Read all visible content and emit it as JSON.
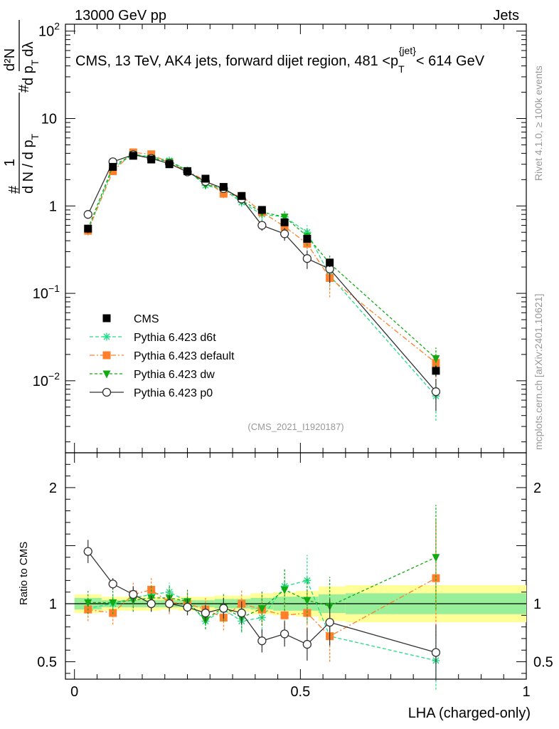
{
  "header": {
    "left": "13000 GeV pp",
    "right": "Jets"
  },
  "title": {
    "prefix": "CMS, 13 TeV, AK4 jets, forward dijet region, 481 <p",
    "sub": "T",
    "sup": "{jet}",
    "suffix": "< 614 GeV"
  },
  "side_labels": {
    "rivet": "Rivet 4.1.0, ≥ 100k events",
    "mcplots": "mcplots.cern.ch [arXiv:2401.10621]"
  },
  "analysis_id": "(CMS_2021_I1920187)",
  "main_ylabel": {
    "hash": "#",
    "one": "1",
    "dn": "d N / d p",
    "dn_sub": "T",
    "num": "d²N",
    "den": "d p",
    "den_sub": "T",
    "den_tail": "dλ"
  },
  "ratio_ylabel": "Ratio to CMS",
  "xlabel": "LHA (charged-only)",
  "legend": [
    {
      "label": "CMS"
    },
    {
      "label": "Pythia 6.423 d6t"
    },
    {
      "label": "Pythia 6.423 default"
    },
    {
      "label": "Pythia 6.423 dw"
    },
    {
      "label": "Pythia 6.423 p0"
    }
  ],
  "chart_data": {
    "type": "scatter",
    "x": [
      0.03,
      0.085,
      0.13,
      0.17,
      0.21,
      0.25,
      0.29,
      0.33,
      0.37,
      0.415,
      0.465,
      0.515,
      0.565,
      0.8
    ],
    "xlim": [
      -0.02,
      1.0
    ],
    "main": {
      "yscale": "log",
      "ylim": [
        0.0015,
        120
      ],
      "ticks": [
        {
          "v": 0.01,
          "base": "10",
          "exp": "−2"
        },
        {
          "v": 0.1,
          "base": "10",
          "exp": "−1"
        },
        {
          "v": 1,
          "base": "1",
          "exp": ""
        },
        {
          "v": 10,
          "base": "10",
          "exp": ""
        },
        {
          "v": 100,
          "base": "10",
          "exp": "2"
        }
      ]
    },
    "ratio": {
      "ylim": [
        0.35,
        2.3
      ],
      "ticks": [
        0.5,
        1,
        2
      ],
      "band_x": [
        0.0,
        0.06,
        0.11,
        0.15,
        0.19,
        0.23,
        0.27,
        0.31,
        0.35,
        0.39,
        0.44,
        0.49,
        0.54,
        0.6,
        1.0
      ],
      "band_inner": [
        0.05,
        0.03,
        0.03,
        0.03,
        0.03,
        0.03,
        0.03,
        0.04,
        0.04,
        0.05,
        0.06,
        0.06,
        0.08,
        0.09
      ],
      "band_outer": [
        0.08,
        0.06,
        0.06,
        0.06,
        0.05,
        0.06,
        0.06,
        0.07,
        0.07,
        0.09,
        0.1,
        0.11,
        0.15,
        0.16
      ]
    },
    "xticks": [
      0,
      0.5,
      1
    ],
    "series": [
      {
        "name": "CMS",
        "color": "#000000",
        "marker": "square",
        "values": [
          0.55,
          2.8,
          3.75,
          3.4,
          3.0,
          2.5,
          2.05,
          1.65,
          1.3,
          0.9,
          0.65,
          0.42,
          0.225,
          0.013
        ],
        "errors": [
          0.06,
          0.2,
          0.2,
          0.2,
          0.15,
          0.12,
          0.1,
          0.1,
          0.08,
          0.06,
          0.05,
          0.04,
          0.025,
          0.0018
        ],
        "ratio": [
          1,
          1,
          1,
          1,
          1,
          1,
          1,
          1,
          1,
          1,
          1,
          1,
          1,
          1
        ],
        "ratio_err": [
          0,
          0,
          0,
          0,
          0,
          0,
          0,
          0,
          0,
          0,
          0,
          0,
          0,
          0
        ]
      },
      {
        "name": "Pythia 6.423 d6t",
        "color": "#22dd88",
        "marker": "star",
        "dash": "5,3",
        "values": [
          0.52,
          2.7,
          3.9,
          3.65,
          3.3,
          2.55,
          1.72,
          1.55,
          1.1,
          0.8,
          0.75,
          0.5,
          0.16,
          0.0067
        ],
        "errors": [
          0.05,
          0.2,
          0.3,
          0.3,
          0.25,
          0.2,
          0.12,
          0.15,
          0.12,
          0.12,
          0.12,
          0.1,
          0.05,
          0.0032
        ],
        "ratio": [
          0.96,
          1.0,
          1.05,
          1.08,
          1.1,
          1.02,
          0.85,
          0.95,
          0.85,
          0.88,
          1.15,
          1.2,
          0.72,
          0.51
        ],
        "ratio_err": [
          0.08,
          0.08,
          0.08,
          0.08,
          0.08,
          0.08,
          0.07,
          0.1,
          0.1,
          0.13,
          0.15,
          0.22,
          0.22,
          0.25
        ]
      },
      {
        "name": "Pythia 6.423 default",
        "color": "#ff7f2a",
        "marker": "square",
        "dash": "7,3,2,3",
        "values": [
          0.52,
          2.5,
          4.1,
          3.9,
          3.1,
          2.5,
          1.95,
          1.38,
          1.3,
          0.85,
          0.58,
          0.37,
          0.15,
          0.016
        ],
        "errors": [
          0.06,
          0.25,
          0.4,
          0.35,
          0.3,
          0.25,
          0.2,
          0.15,
          0.15,
          0.12,
          0.1,
          0.08,
          0.06,
          0.007
        ],
        "ratio": [
          0.95,
          0.92,
          1.08,
          1.12,
          1.01,
          1.0,
          0.95,
          0.88,
          1.0,
          0.95,
          0.9,
          0.92,
          0.72,
          1.22
        ],
        "ratio_err": [
          0.1,
          0.1,
          0.1,
          0.1,
          0.1,
          0.1,
          0.1,
          0.11,
          0.12,
          0.13,
          0.15,
          0.2,
          0.22,
          0.5
        ]
      },
      {
        "name": "Pythia 6.423 dw",
        "color": "#11aa11",
        "marker": "tri-down",
        "dash": "4,3",
        "values": [
          0.55,
          2.85,
          3.9,
          3.55,
          3.2,
          2.55,
          1.75,
          1.6,
          1.15,
          0.85,
          0.75,
          0.45,
          0.22,
          0.018
        ],
        "errors": [
          0.05,
          0.25,
          0.3,
          0.3,
          0.25,
          0.2,
          0.12,
          0.15,
          0.12,
          0.12,
          0.12,
          0.1,
          0.06,
          0.006
        ],
        "ratio": [
          1.01,
          1.01,
          1.03,
          1.05,
          1.05,
          1.02,
          0.86,
          0.97,
          0.88,
          0.96,
          1.12,
          1.03,
          0.98,
          1.4
        ],
        "ratio_err": [
          0.1,
          0.1,
          0.1,
          0.1,
          0.1,
          0.1,
          0.08,
          0.12,
          0.12,
          0.15,
          0.18,
          0.2,
          0.25,
          0.45
        ]
      },
      {
        "name": "Pythia 6.423 p0",
        "color": "#333333",
        "marker": "circle",
        "dash": "",
        "values": [
          0.8,
          3.2,
          3.85,
          3.5,
          3.05,
          2.45,
          1.9,
          1.58,
          1.2,
          0.6,
          0.48,
          0.25,
          0.19,
          0.0075
        ],
        "errors": [
          0.06,
          0.2,
          0.3,
          0.3,
          0.25,
          0.2,
          0.15,
          0.15,
          0.12,
          0.08,
          0.08,
          0.06,
          0.06,
          0.003
        ],
        "ratio": [
          1.45,
          1.17,
          1.08,
          1.0,
          1.0,
          0.97,
          0.92,
          0.96,
          0.92,
          0.68,
          0.74,
          0.65,
          0.84,
          0.58
        ],
        "ratio_err": [
          0.1,
          0.05,
          0.07,
          0.07,
          0.07,
          0.07,
          0.07,
          0.09,
          0.1,
          0.1,
          0.11,
          0.14,
          0.2,
          0.24
        ]
      }
    ]
  }
}
